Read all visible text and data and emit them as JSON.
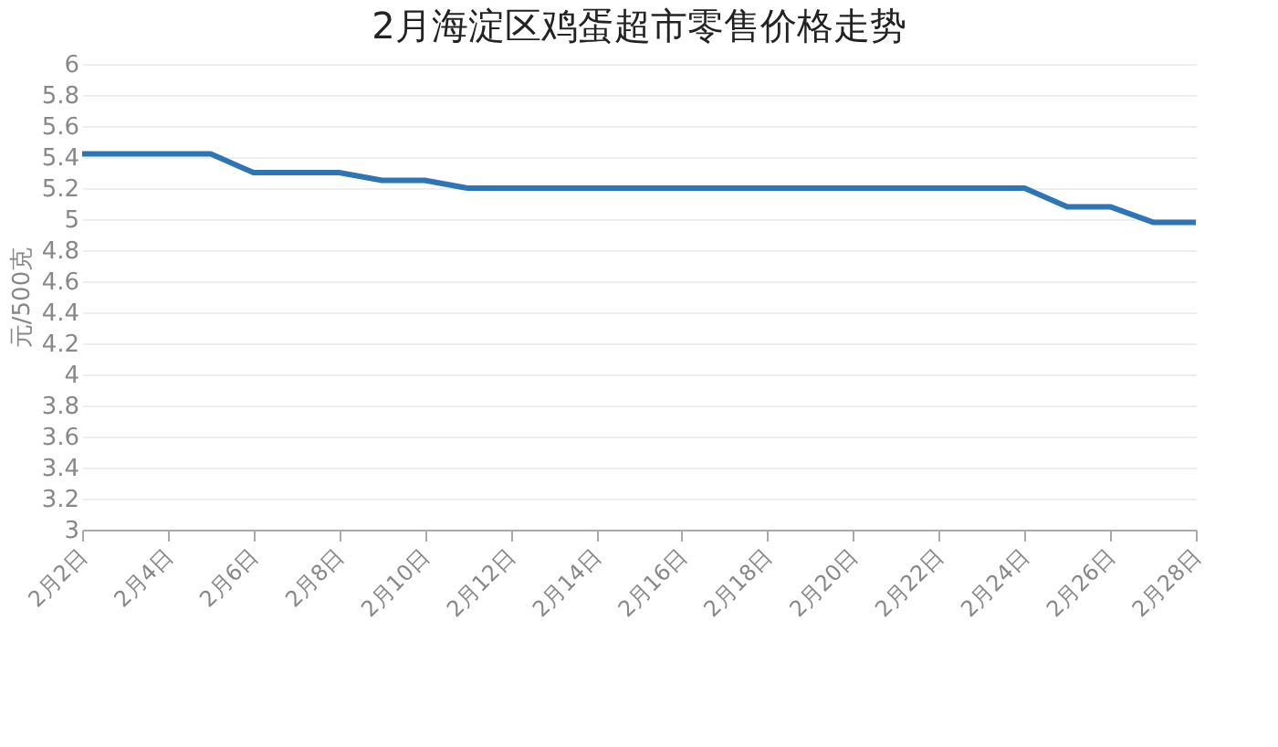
{
  "chart_data": {
    "type": "line",
    "title": "2月海淀区鸡蛋超市零售价格走势",
    "ylabel": "元/500克",
    "categories": [
      "2月2日",
      null,
      "2月4日",
      null,
      "2月6日",
      null,
      "2月8日",
      null,
      "2月10日",
      null,
      "2月12日",
      null,
      "2月14日",
      null,
      "2月16日",
      null,
      "2月18日",
      null,
      "2月20日",
      null,
      "2月22日",
      null,
      "2月24日",
      null,
      "2月26日",
      null,
      "2月28日"
    ],
    "series": [
      {
        "color": "#2e75b6",
        "values": [
          5.42,
          5.42,
          5.42,
          5.42,
          5.3,
          5.3,
          5.3,
          5.25,
          5.25,
          5.2,
          5.2,
          5.2,
          5.2,
          5.2,
          5.2,
          5.2,
          5.2,
          5.2,
          5.2,
          5.2,
          5.2,
          5.2,
          5.2,
          5.08,
          5.08,
          4.98,
          4.98
        ]
      }
    ],
    "ylim": [
      3,
      6
    ],
    "yticks": [
      3,
      3.2,
      3.4,
      3.6,
      3.8,
      4,
      4.2,
      4.4,
      4.6,
      4.8,
      5,
      5.2,
      5.4,
      5.6,
      5.8,
      6
    ],
    "grid": "y",
    "legend": false,
    "marker": "none",
    "line_style": "solid"
  }
}
